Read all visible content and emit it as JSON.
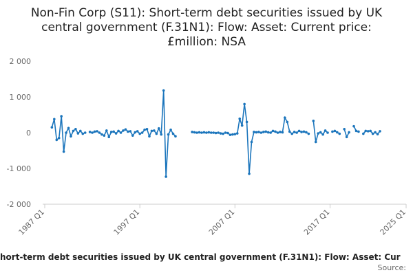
{
  "chart_data": {
    "type": "line",
    "title": [
      "Non-Fin Corp (S11): Short-term debt securities issued by UK",
      "central government (F.31N1): Flow: Asset: Current price:",
      "£million: NSA"
    ],
    "footer": "hort-term debt securities issued by UK central government (F.31N1): Flow: Asset: Cur",
    "source": "Source:",
    "x": [
      "1987 Q4",
      "1988 Q1",
      "1988 Q2",
      "1988 Q3",
      "1988 Q4",
      "1989 Q1",
      "1989 Q2",
      "1989 Q3",
      "1989 Q4",
      "1990 Q1",
      "1990 Q2",
      "1990 Q3",
      "1990 Q4",
      "1991 Q1",
      "1991 Q2",
      "1991 Q3",
      "1991 Q4",
      "1992 Q1",
      "1992 Q2",
      "1992 Q3",
      "1992 Q4",
      "1993 Q1",
      "1993 Q2",
      "1993 Q3",
      "1993 Q4",
      "1994 Q1",
      "1994 Q2",
      "1994 Q3",
      "1994 Q4",
      "1995 Q1",
      "1995 Q2",
      "1995 Q3",
      "1995 Q4",
      "1996 Q1",
      "1996 Q2",
      "1996 Q3",
      "1996 Q4",
      "1997 Q1",
      "1997 Q2",
      "1997 Q3",
      "1997 Q4",
      "1998 Q1",
      "1998 Q2",
      "1998 Q3",
      "1998 Q4",
      "1999 Q1",
      "1999 Q2",
      "1999 Q3",
      "1999 Q4",
      "2000 Q1",
      "2000 Q2",
      "2000 Q3",
      "2000 Q4",
      "2001 Q1",
      "2001 Q2",
      "2001 Q3",
      "2001 Q4",
      "2002 Q1",
      "2002 Q2",
      "2002 Q3",
      "2002 Q4",
      "2003 Q1",
      "2003 Q2",
      "2003 Q3",
      "2003 Q4",
      "2004 Q1",
      "2004 Q2",
      "2004 Q3",
      "2004 Q4",
      "2005 Q1",
      "2005 Q2",
      "2005 Q3",
      "2005 Q4",
      "2006 Q1",
      "2006 Q2",
      "2006 Q3",
      "2006 Q4",
      "2007 Q1",
      "2007 Q2",
      "2007 Q3",
      "2007 Q4",
      "2008 Q1",
      "2008 Q2",
      "2008 Q3",
      "2008 Q4",
      "2009 Q1",
      "2009 Q2",
      "2009 Q3",
      "2009 Q4",
      "2010 Q1",
      "2010 Q2",
      "2010 Q3",
      "2010 Q4",
      "2011 Q1",
      "2011 Q2",
      "2011 Q3",
      "2011 Q4",
      "2012 Q1",
      "2012 Q2",
      "2012 Q3",
      "2012 Q4",
      "2013 Q1",
      "2013 Q2",
      "2013 Q3",
      "2013 Q4",
      "2014 Q1",
      "2014 Q2",
      "2014 Q3",
      "2014 Q4",
      "2015 Q1",
      "2015 Q2",
      "2015 Q3",
      "2015 Q4",
      "2016 Q1",
      "2016 Q2",
      "2016 Q3",
      "2016 Q4",
      "2017 Q1",
      "2017 Q2",
      "2017 Q3",
      "2017 Q4",
      "2018 Q1",
      "2018 Q2",
      "2018 Q3",
      "2018 Q4",
      "2019 Q1",
      "2019 Q2",
      "2019 Q3",
      "2019 Q4",
      "2020 Q1",
      "2020 Q2",
      "2020 Q3",
      "2020 Q4",
      "2021 Q1",
      "2021 Q2",
      "2021 Q3",
      "2021 Q4",
      "2022 Q1",
      "2022 Q2",
      "2022 Q3",
      "2022 Q4"
    ],
    "series": [
      {
        "color": "#1b75bc",
        "values": [
          150,
          380,
          -200,
          -150,
          460,
          -530,
          0,
          130,
          -100,
          50,
          100,
          -20,
          50,
          -30,
          0,
          null,
          20,
          0,
          30,
          40,
          0,
          -50,
          -80,
          60,
          -120,
          20,
          30,
          -20,
          50,
          0,
          60,
          90,
          30,
          40,
          -80,
          10,
          40,
          -30,
          0,
          80,
          100,
          -100,
          50,
          60,
          -30,
          120,
          -50,
          1180,
          -1230,
          -50,
          80,
          -30,
          -100,
          null,
          null,
          null,
          null,
          null,
          null,
          20,
          10,
          0,
          10,
          0,
          10,
          0,
          10,
          0,
          0,
          -10,
          0,
          -20,
          -30,
          0,
          -10,
          -60,
          -50,
          -40,
          -20,
          390,
          200,
          800,
          300,
          -1150,
          -260,
          20,
          10,
          20,
          0,
          20,
          30,
          10,
          0,
          50,
          30,
          0,
          20,
          10,
          420,
          300,
          30,
          -30,
          20,
          0,
          50,
          20,
          30,
          10,
          -30,
          null,
          330,
          -260,
          -20,
          10,
          -50,
          60,
          0,
          null,
          30,
          50,
          10,
          -30,
          null,
          100,
          -120,
          10,
          null,
          180,
          50,
          30,
          null,
          -30,
          50,
          40,
          50,
          -30,
          10,
          -40,
          40,
          null,
          null
        ]
      }
    ],
    "xlim": [
      "1987 Q1",
      "2025 Q1"
    ],
    "xticks": [
      "1987 Q1",
      "1997 Q1",
      "2007 Q1",
      "2017 Q1",
      "2025 Q1"
    ],
    "ylim": [
      -2000,
      2000
    ],
    "yticks": [
      {
        "value": 2000,
        "label": "2 000"
      },
      {
        "value": 1000,
        "label": "1 000"
      },
      0,
      {
        "value": -1000,
        "label": "-1 000"
      },
      {
        "value": -2000,
        "label": "-2 000"
      }
    ]
  }
}
